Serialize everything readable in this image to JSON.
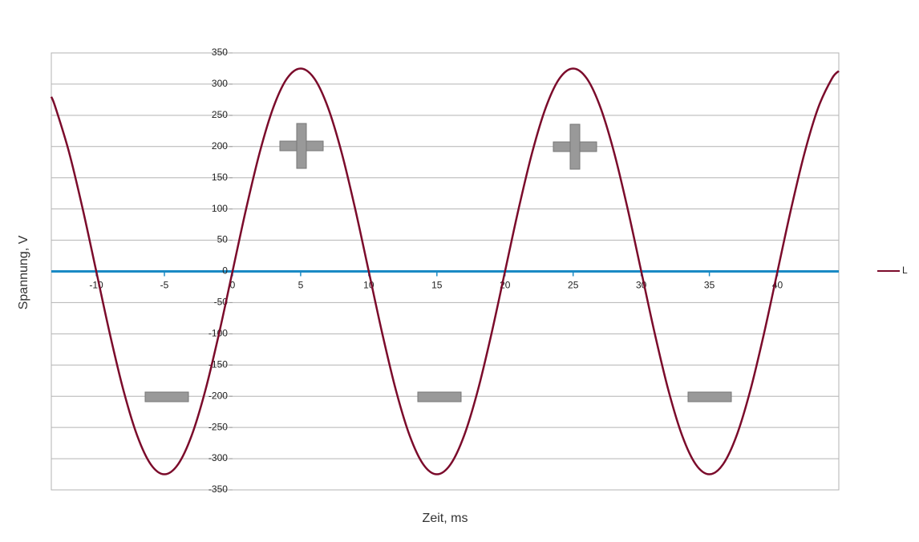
{
  "chart_data": {
    "type": "line",
    "x_label": "Zeit, ms",
    "y_label": "Spannung, V",
    "x": [
      -13.3,
      -13,
      -12,
      -11,
      -10,
      -9,
      -8,
      -7,
      -6,
      -5,
      -4,
      -3,
      -2,
      -1,
      0,
      1,
      2,
      3,
      4,
      5,
      6,
      7,
      8,
      9,
      10,
      11,
      12,
      13,
      14,
      15,
      16,
      17,
      18,
      19,
      20,
      21,
      22,
      23,
      24,
      25,
      26,
      27,
      28,
      29,
      30,
      31,
      32,
      33,
      34,
      35,
      36,
      37,
      38,
      39,
      40,
      41,
      42,
      43,
      44,
      44.5
    ],
    "series": [
      {
        "name": "L",
        "color": "#7b0b2b",
        "values": [
          279.7,
          262.9,
          191.0,
          100.4,
          0,
          -100.4,
          -191.0,
          -262.9,
          -309.1,
          -325,
          -309.1,
          -262.9,
          -191.0,
          -100.4,
          0,
          100.4,
          191.0,
          262.9,
          309.1,
          325,
          309.1,
          262.9,
          191.0,
          100.4,
          0,
          -100.4,
          -191.0,
          -262.9,
          -309.1,
          -325,
          -309.1,
          -262.9,
          -191.0,
          -100.4,
          0,
          100.4,
          191.0,
          262.9,
          309.1,
          325,
          309.1,
          262.9,
          191.0,
          100.4,
          0,
          -100.4,
          -191.0,
          -262.9,
          -309.1,
          -325,
          -309.1,
          -262.9,
          -191.0,
          -100.4,
          0,
          100.4,
          191.0,
          262.9,
          309.1,
          321.0
        ]
      }
    ],
    "xlim": [
      -13.3,
      44.5
    ],
    "xticks": [
      -10,
      -5,
      0,
      5,
      10,
      15,
      20,
      25,
      30,
      35,
      40
    ],
    "ylim": [
      -350,
      350
    ],
    "yticks": [
      -350,
      -300,
      -250,
      -200,
      -150,
      -100,
      -50,
      0,
      50,
      100,
      150,
      200,
      250,
      300,
      350
    ],
    "grid": true,
    "zero_line_color": "#1a8ac4",
    "legend": "right"
  }
}
